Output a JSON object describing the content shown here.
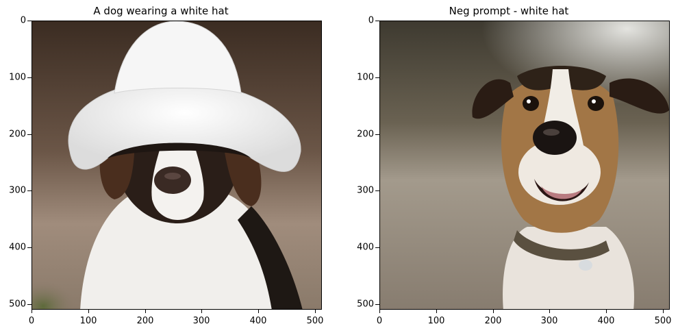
{
  "panels": [
    {
      "title": "A dog wearing a white hat",
      "yticks": [
        "0",
        "100",
        "200",
        "300",
        "400",
        "500"
      ],
      "xticks": [
        "0",
        "100",
        "200",
        "300",
        "400",
        "500"
      ]
    },
    {
      "title": "Neg prompt - white hat",
      "yticks": [
        "0",
        "100",
        "200",
        "300",
        "400",
        "500"
      ],
      "xticks": [
        "0",
        "100",
        "200",
        "300",
        "400",
        "500"
      ]
    }
  ]
}
